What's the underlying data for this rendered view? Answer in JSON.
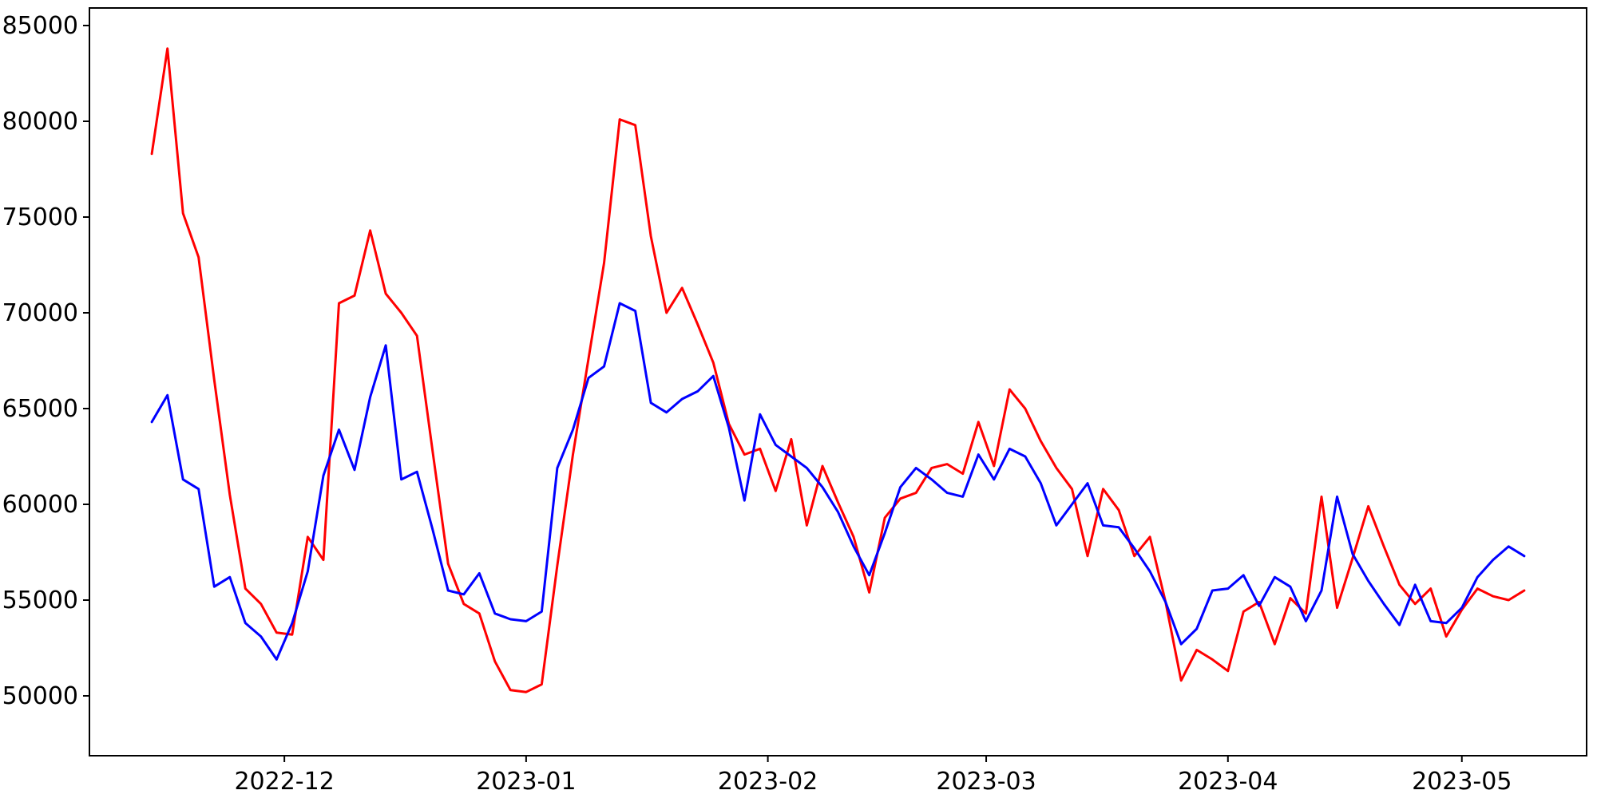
{
  "chart_data": {
    "type": "line",
    "grid": false,
    "legend": false,
    "background_color": "#ffffff",
    "axis_color": "#000000",
    "ylim": [
      46875,
      85917
    ],
    "xlim_dates": [
      "2022-11-06",
      "2023-05-17"
    ],
    "y_ticks": [
      50000,
      55000,
      60000,
      65000,
      70000,
      75000,
      80000,
      85000
    ],
    "x_ticks": [
      {
        "date": "2022-12-01",
        "label": "2022-12"
      },
      {
        "date": "2023-01-01",
        "label": "2023-01"
      },
      {
        "date": "2023-02-01",
        "label": "2023-02"
      },
      {
        "date": "2023-03-01",
        "label": "2023-03"
      },
      {
        "date": "2023-04-01",
        "label": "2023-04"
      },
      {
        "date": "2023-05-01",
        "label": "2023-05"
      }
    ],
    "x": [
      "2022-11-14",
      "2022-11-16",
      "2022-11-18",
      "2022-11-20",
      "2022-11-22",
      "2022-11-24",
      "2022-11-26",
      "2022-11-28",
      "2022-11-30",
      "2022-12-02",
      "2022-12-04",
      "2022-12-06",
      "2022-12-08",
      "2022-12-10",
      "2022-12-12",
      "2022-12-14",
      "2022-12-16",
      "2022-12-18",
      "2022-12-20",
      "2022-12-22",
      "2022-12-24",
      "2022-12-26",
      "2022-12-28",
      "2022-12-30",
      "2023-01-01",
      "2023-01-03",
      "2023-01-05",
      "2023-01-07",
      "2023-01-09",
      "2023-01-11",
      "2023-01-13",
      "2023-01-15",
      "2023-01-17",
      "2023-01-19",
      "2023-01-21",
      "2023-01-23",
      "2023-01-25",
      "2023-01-27",
      "2023-01-29",
      "2023-01-31",
      "2023-02-02",
      "2023-02-04",
      "2023-02-06",
      "2023-02-08",
      "2023-02-10",
      "2023-02-12",
      "2023-02-14",
      "2023-02-16",
      "2023-02-18",
      "2023-02-20",
      "2023-02-22",
      "2023-02-24",
      "2023-02-26",
      "2023-02-28",
      "2023-03-02",
      "2023-03-04",
      "2023-03-06",
      "2023-03-08",
      "2023-03-10",
      "2023-03-12",
      "2023-03-14",
      "2023-03-16",
      "2023-03-18",
      "2023-03-20",
      "2023-03-22",
      "2023-03-24",
      "2023-03-26",
      "2023-03-28",
      "2023-03-30",
      "2023-04-01",
      "2023-04-03",
      "2023-04-05",
      "2023-04-07",
      "2023-04-09",
      "2023-04-11",
      "2023-04-13",
      "2023-04-15",
      "2023-04-17",
      "2023-04-19",
      "2023-04-21",
      "2023-04-23",
      "2023-04-25",
      "2023-04-27",
      "2023-04-29",
      "2023-05-01",
      "2023-05-03",
      "2023-05-05",
      "2023-05-07",
      "2023-05-09"
    ],
    "series": [
      {
        "name": "red-line",
        "color": "#ff0000",
        "values": [
          78300,
          83800,
          75200,
          72900,
          66500,
          60500,
          55600,
          54800,
          53300,
          53200,
          58300,
          57100,
          70500,
          70900,
          74300,
          71000,
          70000,
          68800,
          62800,
          56900,
          54800,
          54300,
          51800,
          50300,
          50200,
          50600,
          56800,
          62600,
          67600,
          72600,
          80100,
          79800,
          74000,
          70000,
          71300,
          69400,
          67400,
          64200,
          62600,
          62900,
          60700,
          63400,
          58900,
          62000,
          60100,
          58300,
          55400,
          59300,
          60300,
          60600,
          61900,
          62100,
          61600,
          64300,
          62000,
          66000,
          65000,
          63300,
          61900,
          60800,
          57300,
          60800,
          59700,
          57300,
          58300,
          54900,
          50800,
          52400,
          51900,
          51300,
          54400,
          54900,
          52700,
          55100,
          54300,
          60400,
          54600,
          57200,
          59900,
          57800,
          55800,
          54800,
          55600,
          53100,
          54500,
          55600,
          55200,
          55000,
          55500
        ]
      },
      {
        "name": "blue-line",
        "color": "#0000ff",
        "values": [
          64300,
          65700,
          61300,
          60800,
          55700,
          56200,
          53800,
          53100,
          51900,
          53800,
          56500,
          61500,
          63900,
          61800,
          65600,
          68300,
          61300,
          61700,
          58700,
          55500,
          55300,
          56400,
          54300,
          54000,
          53900,
          54400,
          61900,
          63900,
          66600,
          67200,
          70500,
          70100,
          65300,
          64800,
          65500,
          65900,
          66700,
          64000,
          60200,
          64700,
          63100,
          62500,
          61900,
          60900,
          59600,
          57800,
          56300,
          58500,
          60900,
          61900,
          61300,
          60600,
          60400,
          62600,
          61300,
          62900,
          62500,
          61100,
          58900,
          60000,
          61100,
          58900,
          58800,
          57700,
          56500,
          54900,
          52700,
          53500,
          55500,
          55600,
          56300,
          54700,
          56200,
          55700,
          53900,
          55500,
          60400,
          57400,
          56000,
          54800,
          53700,
          55800,
          53900,
          53800,
          54600,
          56200,
          57100,
          57800,
          57300
        ]
      }
    ]
  }
}
